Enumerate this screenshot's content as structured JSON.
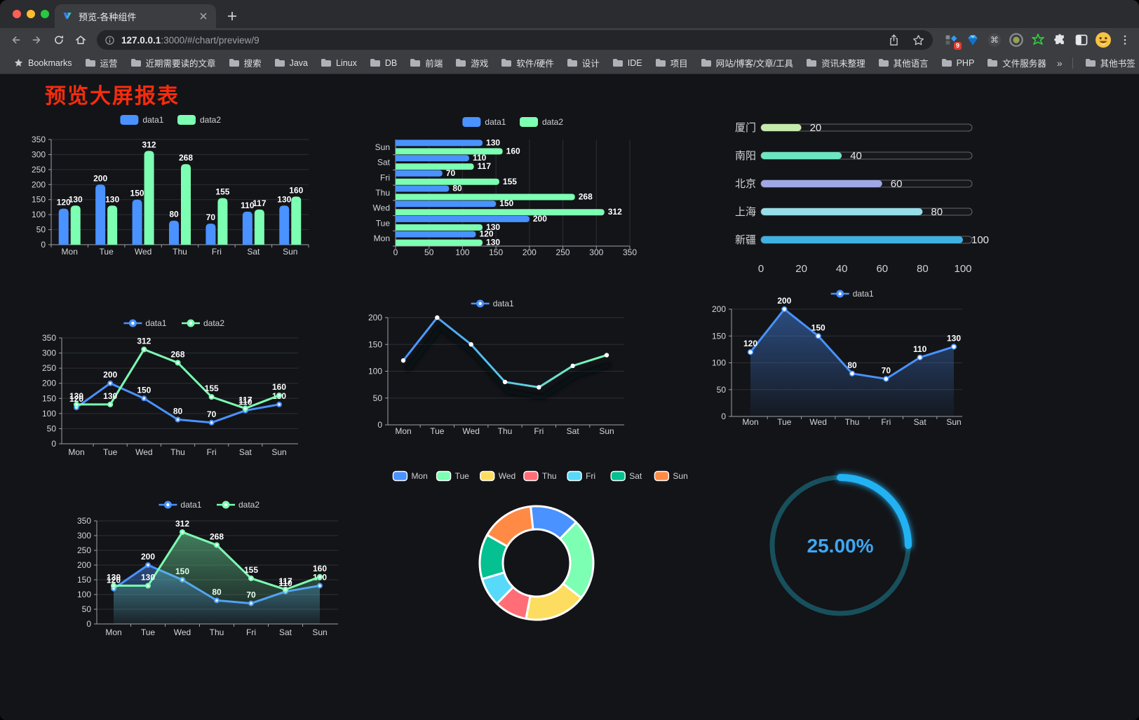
{
  "browser": {
    "tab_title": "预览-各种组件",
    "url_host": "127.0.0.1",
    "url_path": ":3000/#/chart/preview/9",
    "ext_badge": "9",
    "ext_cmd_char": "⌘",
    "bookmarks_label": "Bookmarks",
    "bookmarks": [
      "运营",
      "近期需要读的文章",
      "搜索",
      "Java",
      "Linux",
      "DB",
      "前端",
      "游戏",
      "软件/硬件",
      "设计",
      "IDE",
      "项目",
      "网站/博客/文章/工具",
      "资讯未整理",
      "其他语言",
      "PHP",
      "文件服务器"
    ],
    "bookmarks_overflow": "»",
    "other_bookmarks": "其他书签"
  },
  "page": {
    "title": "预览大屏报表",
    "title_color": "#f72c0c"
  },
  "chart_data": [
    {
      "id": "bar-vertical",
      "type": "bar",
      "categories": [
        "Mon",
        "Tue",
        "Wed",
        "Thu",
        "Fri",
        "Sat",
        "Sun"
      ],
      "series": [
        {
          "name": "data1",
          "color": "#4992ff",
          "values": [
            120,
            200,
            150,
            80,
            70,
            110,
            130
          ]
        },
        {
          "name": "data2",
          "color": "#7cffb2",
          "values": [
            130,
            130,
            312,
            268,
            155,
            117,
            160
          ]
        }
      ],
      "ylim": [
        0,
        350
      ],
      "yticks": [
        0,
        50,
        100,
        150,
        200,
        250,
        300,
        350
      ],
      "legend_position": "top",
      "grid": true
    },
    {
      "id": "bar-horizontal",
      "type": "bar",
      "orientation": "horizontal",
      "categories": [
        "Mon",
        "Tue",
        "Wed",
        "Thu",
        "Fri",
        "Sat",
        "Sun"
      ],
      "series": [
        {
          "name": "data1",
          "color": "#4992ff",
          "values": [
            120,
            200,
            150,
            80,
            70,
            110,
            130
          ]
        },
        {
          "name": "data2",
          "color": "#7cffb2",
          "values": [
            130,
            130,
            312,
            268,
            155,
            117,
            160
          ]
        }
      ],
      "xlim": [
        0,
        350
      ],
      "xticks": [
        0,
        50,
        100,
        150,
        200,
        250,
        300,
        350
      ],
      "legend_position": "top",
      "grid": true
    },
    {
      "id": "progress-bars",
      "type": "bar",
      "orientation": "progress",
      "categories": [
        "厦门",
        "南阳",
        "北京",
        "上海",
        "新疆"
      ],
      "values": [
        20,
        40,
        60,
        80,
        100
      ],
      "colors": [
        "#c4ebad",
        "#6be6c1",
        "#a0a7e6",
        "#96dee8",
        "#3fb1e3"
      ],
      "xlim": [
        0,
        100
      ],
      "xticks": [
        0,
        20,
        40,
        60,
        80,
        100
      ]
    },
    {
      "id": "line-basic",
      "type": "line",
      "categories": [
        "Mon",
        "Tue",
        "Wed",
        "Thu",
        "Fri",
        "Sat",
        "Sun"
      ],
      "series": [
        {
          "name": "data1",
          "color": "#4992ff",
          "values": [
            120,
            200,
            150,
            80,
            70,
            110,
            130
          ]
        },
        {
          "name": "data2",
          "color": "#7cffb2",
          "values": [
            130,
            130,
            312,
            268,
            155,
            117,
            160
          ]
        }
      ],
      "ylim": [
        0,
        350
      ],
      "yticks": [
        0,
        50,
        100,
        150,
        200,
        250,
        300,
        350
      ],
      "show_labels": true,
      "legend_position": "top",
      "grid": true
    },
    {
      "id": "line-gradient-shadow",
      "type": "line",
      "categories": [
        "Mon",
        "Tue",
        "Wed",
        "Thu",
        "Fri",
        "Sat",
        "Sun"
      ],
      "series": [
        {
          "name": "data1",
          "color": "#4992ff",
          "gradient": [
            "#4992ff",
            "#58c5e8",
            "#7cffb2"
          ],
          "shadow": true,
          "values": [
            120,
            200,
            150,
            80,
            70,
            110,
            130
          ]
        }
      ],
      "ylim": [
        0,
        200
      ],
      "yticks": [
        0,
        50,
        100,
        150,
        200
      ],
      "show_labels": false,
      "legend_position": "top",
      "grid": true
    },
    {
      "id": "line-area",
      "type": "line",
      "categories": [
        "Mon",
        "Tue",
        "Wed",
        "Thu",
        "Fri",
        "Sat",
        "Sun"
      ],
      "series": [
        {
          "name": "data1",
          "color": "#4992ff",
          "area": true,
          "values": [
            120,
            200,
            150,
            80,
            70,
            110,
            130
          ]
        }
      ],
      "ylim": [
        0,
        200
      ],
      "yticks": [
        0,
        50,
        100,
        150,
        200
      ],
      "show_labels": true,
      "legend_position": "top",
      "grid": true
    },
    {
      "id": "line-area-double",
      "type": "line",
      "categories": [
        "Mon",
        "Tue",
        "Wed",
        "Thu",
        "Fri",
        "Sat",
        "Sun"
      ],
      "series": [
        {
          "name": "data1",
          "color": "#4992ff",
          "area": true,
          "values": [
            120,
            200,
            150,
            80,
            70,
            110,
            130
          ]
        },
        {
          "name": "data2",
          "color": "#7cffb2",
          "area": true,
          "values": [
            130,
            130,
            312,
            268,
            155,
            117,
            160
          ]
        }
      ],
      "ylim": [
        0,
        350
      ],
      "yticks": [
        0,
        50,
        100,
        150,
        200,
        250,
        300,
        350
      ],
      "show_labels": true,
      "legend_position": "top",
      "grid": true
    },
    {
      "id": "donut",
      "type": "pie",
      "categories": [
        "Mon",
        "Tue",
        "Wed",
        "Thu",
        "Fri",
        "Sat",
        "Sun"
      ],
      "values": [
        120,
        200,
        150,
        80,
        70,
        110,
        130
      ],
      "colors": [
        "#4992ff",
        "#7cffb2",
        "#fddd60",
        "#ff6e76",
        "#58d9f9",
        "#05c091",
        "#ff8a45"
      ],
      "legend_position": "top"
    },
    {
      "id": "gauge",
      "type": "gauge",
      "value": 25,
      "max": 100,
      "label": "25.00%",
      "arc_color": "#24b2f4",
      "track_color": "#17505c",
      "text_color": "#3ea7f2"
    }
  ]
}
